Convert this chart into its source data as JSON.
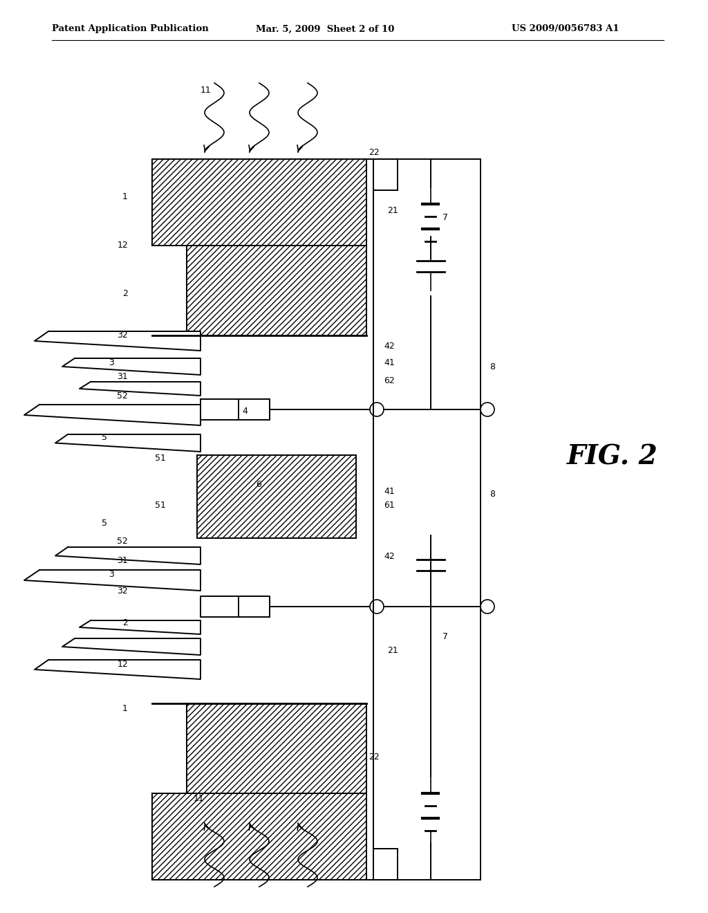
{
  "header_left": "Patent Application Publication",
  "header_center": "Mar. 5, 2009  Sheet 2 of 10",
  "header_right": "US 2009/0056783 A1",
  "fig_label": "FIG. 2",
  "bg_color": "#ffffff"
}
